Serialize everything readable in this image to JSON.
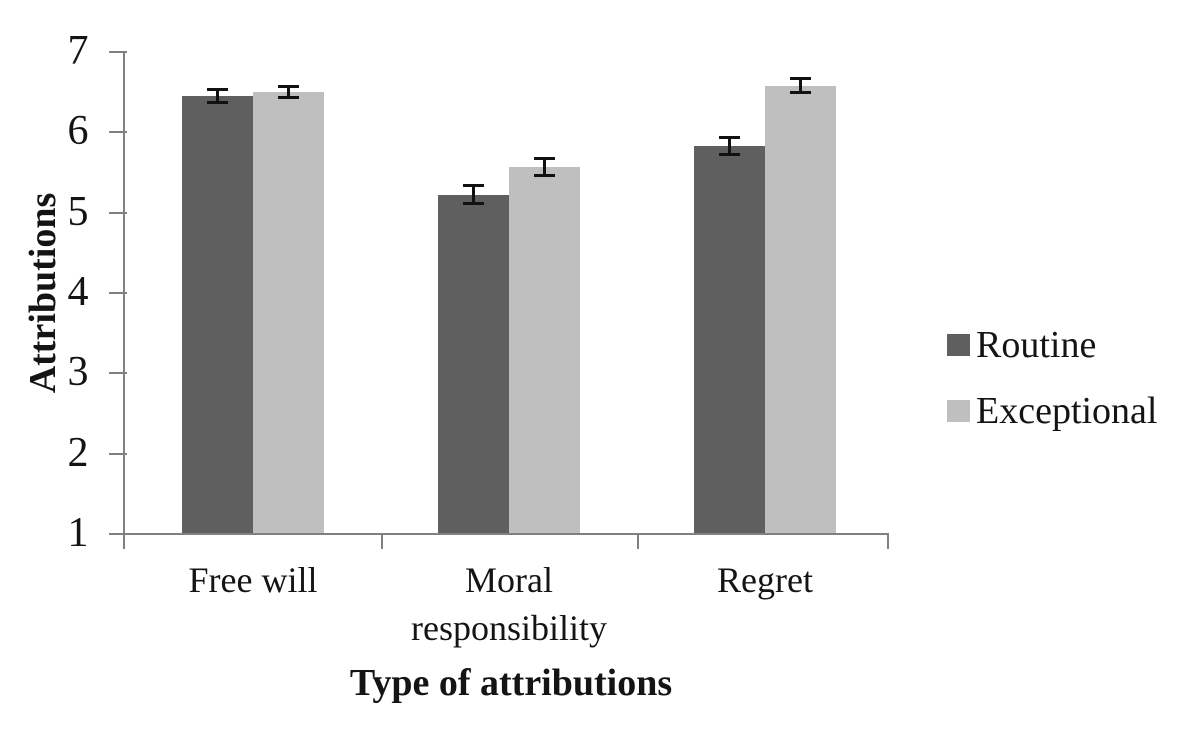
{
  "chart_data": {
    "type": "bar",
    "title": "",
    "xlabel": "Type of attributions",
    "ylabel": "Attributions",
    "categories": [
      "Free will",
      "Moral responsibility",
      "Regret"
    ],
    "series": [
      {
        "name": "Routine",
        "color": "#5f5f5f",
        "values": [
          6.44,
          5.21,
          5.82
        ],
        "errors": [
          0.09,
          0.12,
          0.11
        ]
      },
      {
        "name": "Exceptional",
        "color": "#bfbfbf",
        "values": [
          6.49,
          5.56,
          6.57
        ],
        "errors": [
          0.08,
          0.11,
          0.09
        ]
      }
    ],
    "ylim": [
      1,
      7
    ],
    "yticks": [
      1,
      2,
      3,
      4,
      5,
      6,
      7
    ],
    "legend_position": "right",
    "grid": false,
    "colors": {
      "axis": "#808080",
      "error_bar": "#111111",
      "text": "#141414",
      "background": "#ffffff"
    }
  }
}
